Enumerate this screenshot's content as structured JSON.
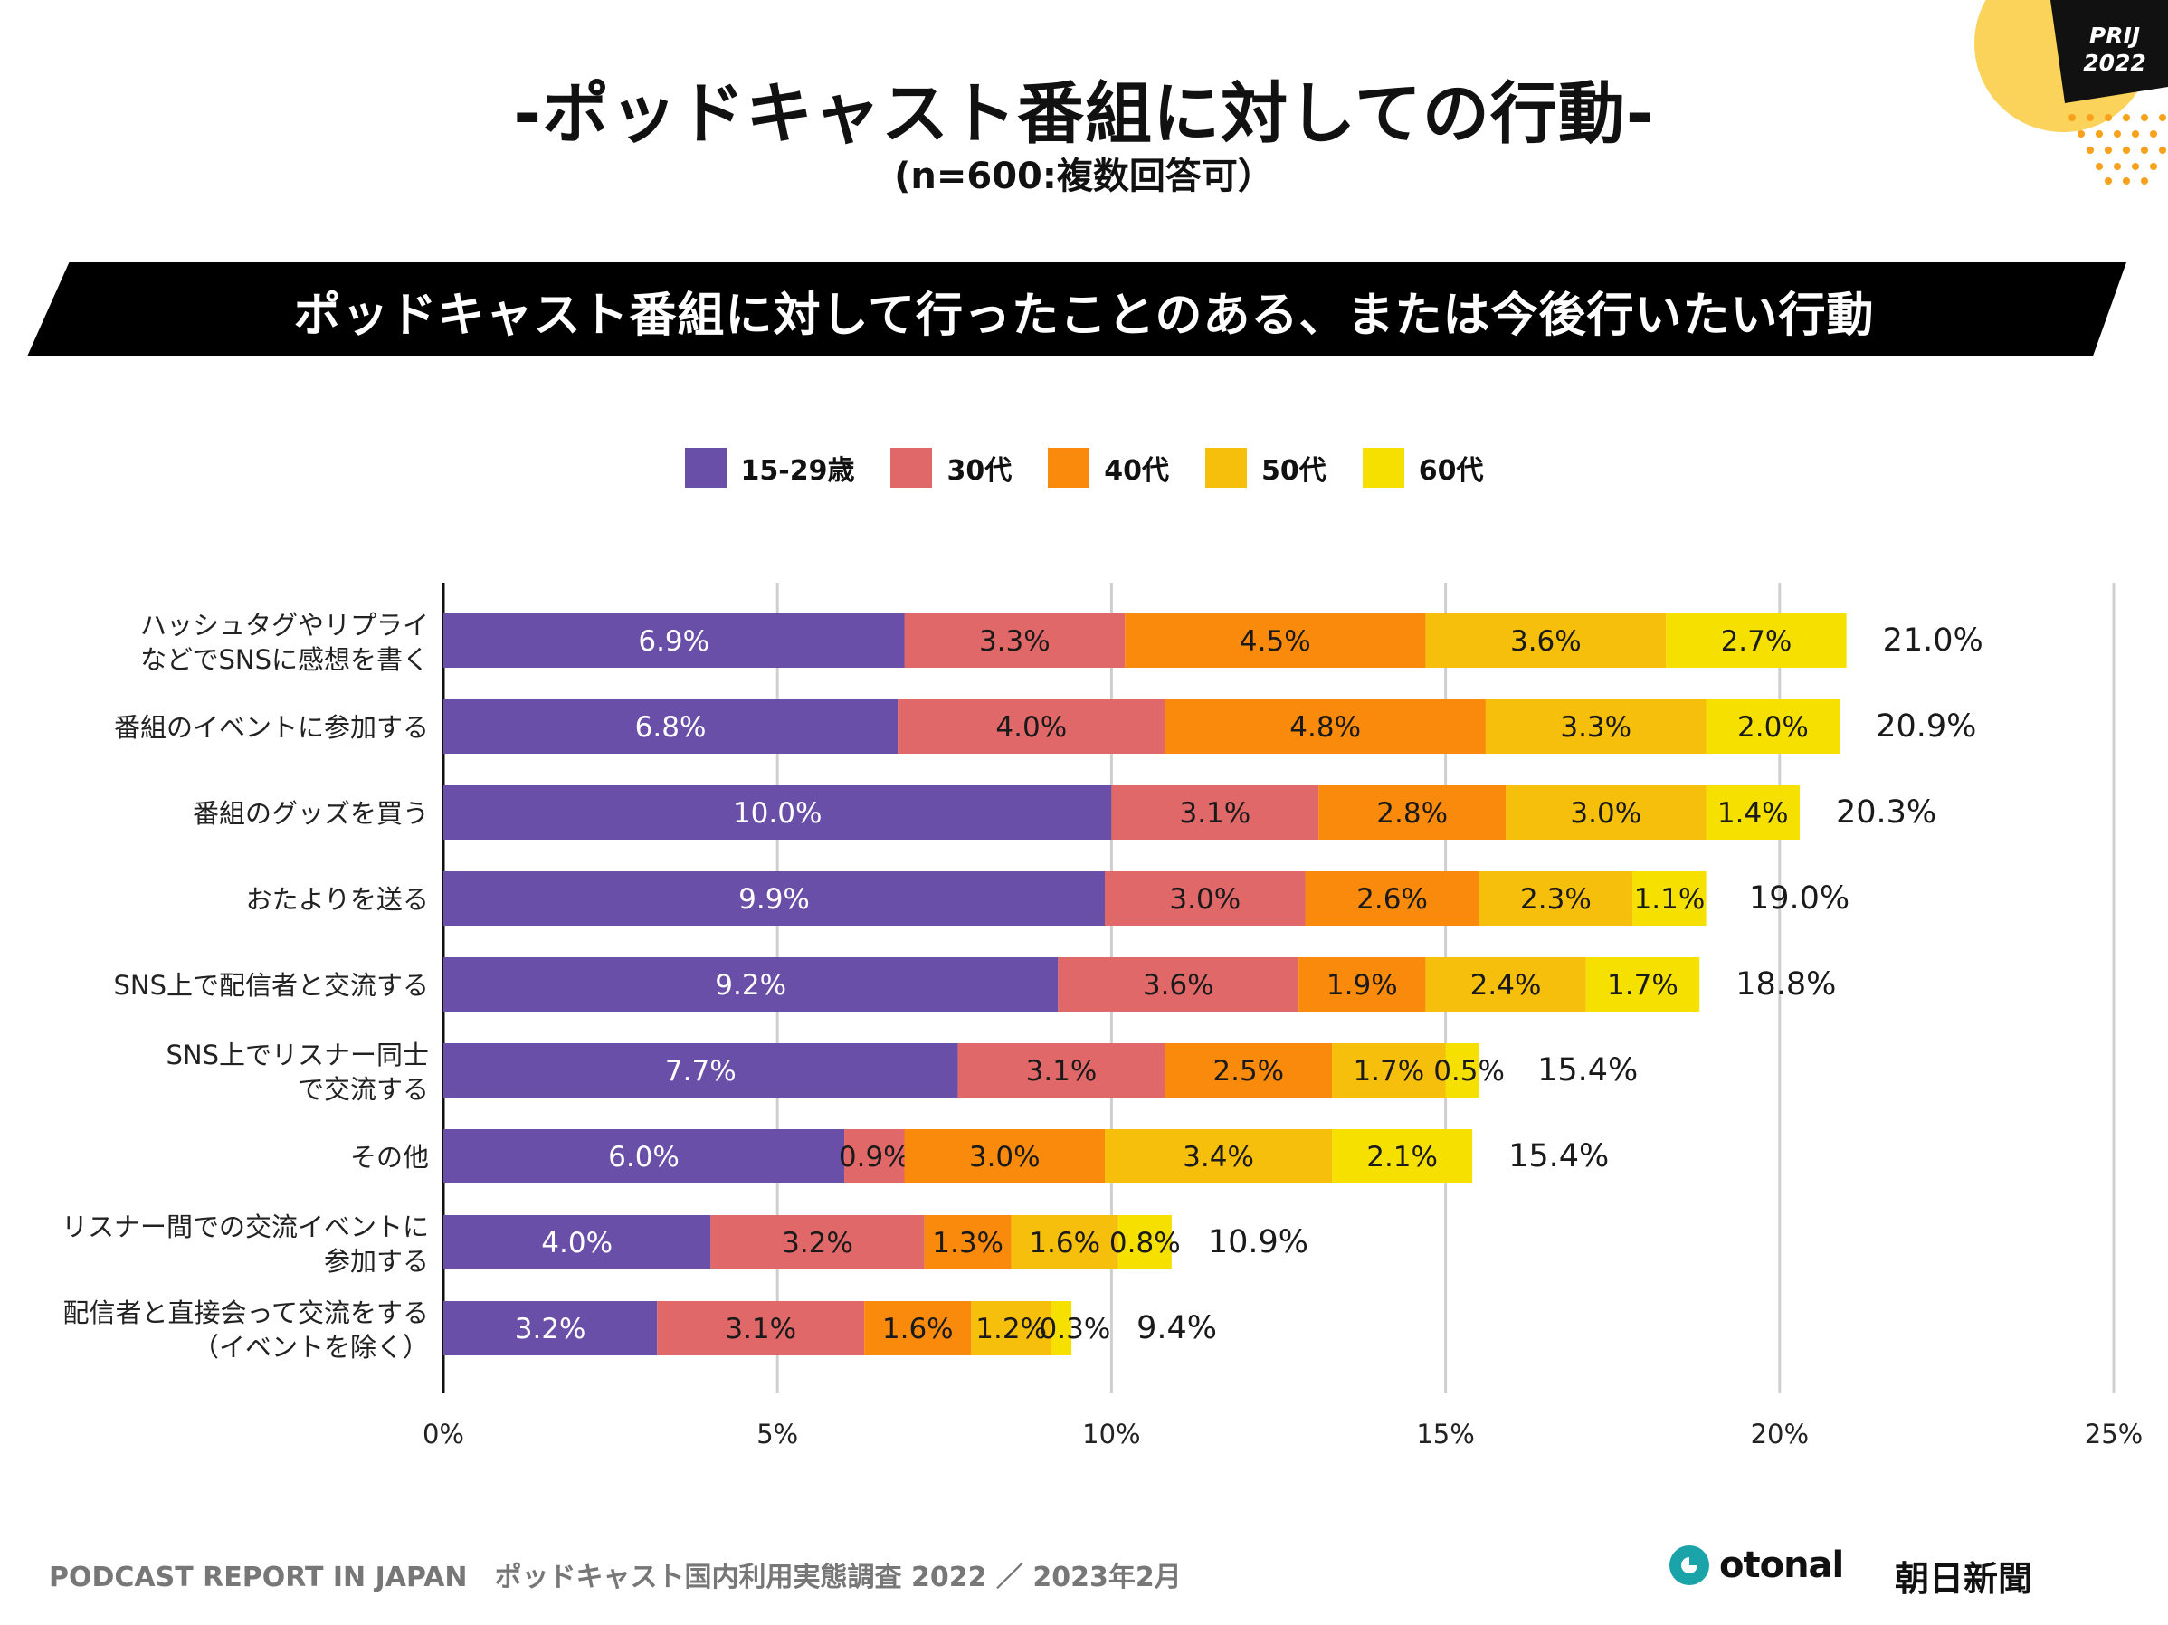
{
  "header": {
    "title": "-ポッドキャスト番組に対しての行動-",
    "subtitle": "(n=600:複数回答可）",
    "banner": "ポッドキャスト番組に対して行ったことのある、または今後行いたい行動",
    "badge_line1": "PRIJ",
    "badge_line2": "2022"
  },
  "footer": {
    "source": "PODCAST REPORT IN JAPAN　ポッドキャスト国内利用実態調査 2022 ／ 2023年2月",
    "logo_otonal": "otonal",
    "logo_asahi": "朝日新聞"
  },
  "colors": {
    "purple": "#6a4fa8",
    "red": "#e06868",
    "orange": "#f98a0c",
    "amber": "#f6bf0c",
    "yellow": "#f5e000"
  },
  "chart_data": {
    "type": "bar",
    "orientation": "horizontal",
    "stacked": true,
    "xlim": [
      0,
      25
    ],
    "xticks": [
      "0%",
      "5%",
      "10%",
      "15%",
      "20%",
      "25%"
    ],
    "grid": true,
    "legend_position": "top-center",
    "categories": [
      [
        "ハッシュタグやリプライ",
        "などでSNSに感想を書く"
      ],
      [
        "番組のイベントに参加する"
      ],
      [
        "番組のグッズを買う"
      ],
      [
        "おたよりを送る"
      ],
      [
        "SNS上で配信者と交流する"
      ],
      [
        "SNS上でリスナー同士",
        "で交流する"
      ],
      [
        "その他"
      ],
      [
        "リスナー間での交流イベントに",
        "参加する"
      ],
      [
        "配信者と直接会って交流をする",
        "（イベントを除く）"
      ]
    ],
    "series": [
      {
        "name": "15-29歳",
        "color": "#6a4fa8",
        "values": [
          6.9,
          6.8,
          10.0,
          9.9,
          9.2,
          7.7,
          6.0,
          4.0,
          3.2
        ],
        "labels": [
          "6.9%",
          "6.8%",
          "10.0%",
          "9.9%",
          "9.2%",
          "7.7%",
          "6.0%",
          "4.0%",
          "3.2%"
        ]
      },
      {
        "name": "30代",
        "color": "#e06868",
        "values": [
          3.3,
          4.0,
          3.1,
          3.0,
          3.6,
          3.1,
          0.9,
          3.2,
          3.1
        ],
        "labels": [
          "3.3%",
          "4.0%",
          "3.1%",
          "3.0%",
          "3.6%",
          "3.1%",
          "0.9%",
          "3.2%",
          "3.1%"
        ]
      },
      {
        "name": "40代",
        "color": "#f98a0c",
        "values": [
          4.5,
          4.8,
          2.8,
          2.6,
          1.9,
          2.5,
          3.0,
          1.3,
          1.6
        ],
        "labels": [
          "4.5%",
          "4.8%",
          "2.8%",
          "2.6%",
          "1.9%",
          "2.5%",
          "3.0%",
          "1.3%",
          "1.6%"
        ]
      },
      {
        "name": "50代",
        "color": "#f6bf0c",
        "values": [
          3.6,
          3.3,
          3.0,
          2.3,
          2.4,
          1.7,
          3.4,
          1.6,
          1.2
        ],
        "labels": [
          "3.6%",
          "3.3%",
          "3.0%",
          "2.3%",
          "2.4%",
          "1.7%",
          "3.4%",
          "1.6%",
          "1.2%"
        ]
      },
      {
        "name": "60代",
        "color": "#f5e000",
        "values": [
          2.7,
          2.0,
          1.4,
          1.1,
          1.7,
          0.5,
          2.1,
          0.8,
          0.3
        ],
        "labels": [
          "2.7%",
          "2.0%",
          "1.4%",
          "1.1%",
          "1.7%",
          "0.5%",
          "2.1%",
          "0.8%",
          "0.3%"
        ]
      }
    ],
    "totals": [
      21.0,
      20.9,
      20.3,
      19.0,
      18.8,
      15.4,
      15.4,
      10.9,
      9.4
    ],
    "total_labels": [
      "21.0%",
      "20.9%",
      "20.3%",
      "19.0%",
      "18.8%",
      "15.4%",
      "15.4%",
      "10.9%",
      "9.4%"
    ]
  }
}
